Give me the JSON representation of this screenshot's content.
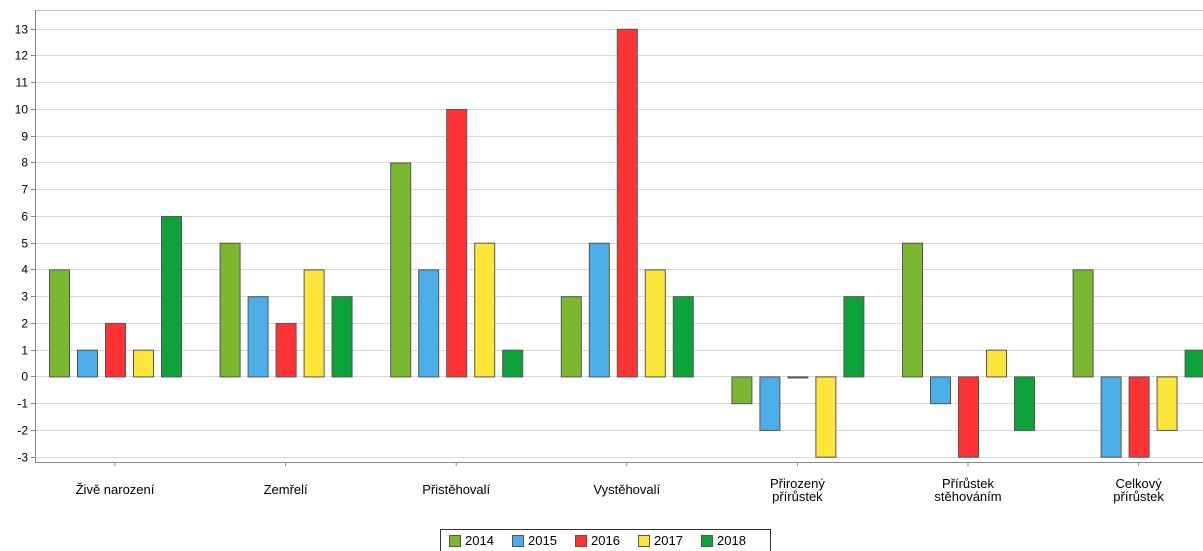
{
  "chart_data": {
    "type": "bar",
    "categories": [
      "Živě narození",
      "Zemřelí",
      "Přistěhovalí",
      "Vystěhovalí",
      "Přirozený\npřírůstek",
      "Přírůstek\nstěhováním",
      "Celkový\npřírůstek"
    ],
    "series": [
      {
        "name": "2014",
        "color": "#7cb82f",
        "values": [
          4,
          5,
          8,
          3,
          -1,
          5,
          4
        ]
      },
      {
        "name": "2015",
        "color": "#4baee8",
        "values": [
          1,
          3,
          4,
          5,
          -2,
          -1,
          -3
        ]
      },
      {
        "name": "2016",
        "color": "#ff3333",
        "values": [
          2,
          2,
          10,
          13,
          0,
          -3,
          -3
        ]
      },
      {
        "name": "2017",
        "color": "#ffe53a",
        "values": [
          1,
          4,
          5,
          4,
          -3,
          1,
          -2
        ]
      },
      {
        "name": "2018",
        "color": "#0ea33a",
        "values": [
          6,
          3,
          1,
          3,
          3,
          -2,
          1
        ]
      }
    ],
    "ylim": [
      -3,
      13
    ],
    "yticks": [
      -3,
      -2,
      -1,
      0,
      1,
      2,
      3,
      4,
      5,
      6,
      7,
      8,
      9,
      10,
      11,
      12,
      13
    ],
    "grid": true,
    "legend": "bottom-center",
    "title": "",
    "xlabel": "",
    "ylabel": ""
  }
}
